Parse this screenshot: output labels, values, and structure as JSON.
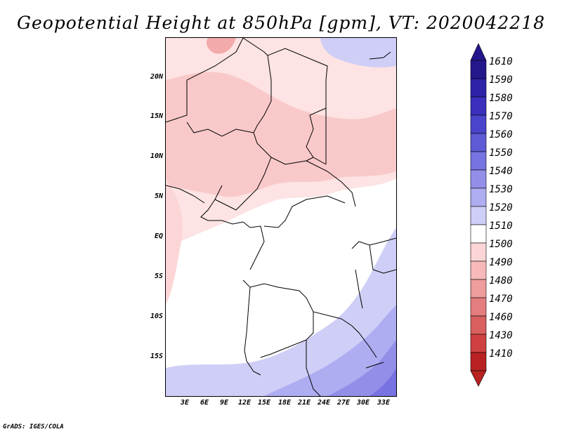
{
  "title": "Geopotential Height at 850hPa [gpm], VT: 2020042218",
  "footer": "GrADS: IGES/COLA",
  "map": {
    "lat_labels": [
      "20N",
      "15N",
      "10N",
      "5N",
      "EQ",
      "5S",
      "10S",
      "15S"
    ],
    "lon_labels": [
      "3E",
      "6E",
      "9E",
      "12E",
      "15E",
      "18E",
      "21E",
      "24E",
      "27E",
      "30E",
      "33E"
    ]
  },
  "colorbar": {
    "levels": [
      "1610",
      "1590",
      "1580",
      "1570",
      "1560",
      "1550",
      "1540",
      "1530",
      "1520",
      "1510",
      "1500",
      "1490",
      "1480",
      "1470",
      "1460",
      "1430",
      "1410"
    ],
    "colors": [
      "#24178c",
      "#2d22a8",
      "#3a30bd",
      "#4a44cc",
      "#5e5ad6",
      "#7773e0",
      "#938fe9",
      "#afadf1",
      "#cfcef7",
      "#ffffff",
      "#fcd6d6",
      "#f7b9b9",
      "#ee9c9c",
      "#e47d7d",
      "#da5f5f",
      "#cf4040",
      "#b82222"
    ]
  }
}
